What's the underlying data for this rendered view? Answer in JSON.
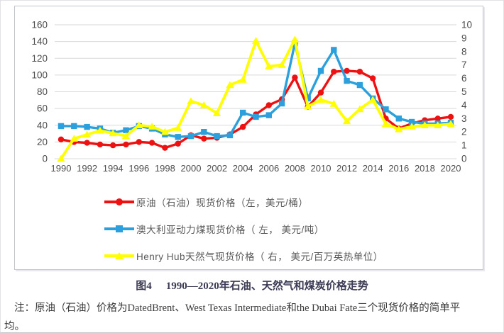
{
  "caption": {
    "label": "图4",
    "title": "1990—2020年石油、天然气和煤炭价格走势"
  },
  "note": {
    "line1": "注：原油（石油）价格为DatedBrent、West Texas Intermediate和the Dubai Fate三个现货价格的简单平",
    "line2": "均。"
  },
  "colors": {
    "caption_text": "#3c3b54",
    "grid": "#d9d9d9",
    "axis_text": "#4d4d4d",
    "oil": "#ee1111",
    "coal": "#2ba0dd",
    "gas": "#ffff00"
  },
  "chart_data": {
    "type": "line",
    "x": [
      1990,
      1991,
      1992,
      1993,
      1994,
      1995,
      1996,
      1997,
      1998,
      1999,
      2000,
      2001,
      2002,
      2003,
      2004,
      2005,
      2006,
      2007,
      2008,
      2009,
      2010,
      2011,
      2012,
      2013,
      2014,
      2015,
      2016,
      2017,
      2018,
      2019,
      2020
    ],
    "x_tick_labels": [
      "1990",
      "1992",
      "1994",
      "1996",
      "1998",
      "2000",
      "2002",
      "2004",
      "2006",
      "2008",
      "2010",
      "2012",
      "2014",
      "2016",
      "2018",
      "2020"
    ],
    "x_tick_step": 2,
    "left_axis": {
      "min": 0,
      "max": 160,
      "step": 20,
      "tick_labels": [
        "0",
        "20",
        "40",
        "60",
        "80",
        "100",
        "120",
        "140",
        "160"
      ]
    },
    "right_axis": {
      "min": 0,
      "max": 10,
      "step": 1,
      "tick_labels": [
        "0",
        "1",
        "2",
        "3",
        "4",
        "5",
        "6",
        "7",
        "8",
        "9",
        "10"
      ]
    },
    "grid": true,
    "legend_position": "bottom-left",
    "series": [
      {
        "name": "原油（石油）现货价格（左，美元/桶）",
        "axis": "left",
        "color": "#ee1111",
        "marker": "circle",
        "line_width": 3.4,
        "values": [
          23,
          20,
          19,
          17,
          16,
          17,
          20,
          19,
          13,
          18,
          28,
          24,
          25,
          29,
          38,
          53,
          64,
          71,
          97,
          62,
          79,
          104,
          105,
          104,
          96,
          48,
          36,
          42,
          46,
          48,
          50
        ]
      },
      {
        "name": "澳大利亚动力煤现货价格（ 左， 美元/吨）",
        "axis": "left",
        "color": "#2ba0dd",
        "marker": "square",
        "line_width": 3.4,
        "values": [
          39,
          39,
          38,
          36,
          31,
          34,
          39,
          36,
          29,
          26,
          27,
          32,
          27,
          28,
          55,
          50,
          52,
          66,
          138,
          72,
          105,
          130,
          93,
          88,
          72,
          59,
          48,
          44,
          42,
          42,
          43
        ]
      },
      {
        "name": "Henry Hub天然气现货价格（ 右， 美元/百万英热单位）",
        "axis": "right",
        "color": "#ffff00",
        "marker": "triangle",
        "line_width": 3.8,
        "values": [
          0,
          1.5,
          1.8,
          2.1,
          1.9,
          1.7,
          2.5,
          2.4,
          2.0,
          2.3,
          4.3,
          4.0,
          3.4,
          5.5,
          5.9,
          8.8,
          6.9,
          7.0,
          8.9,
          3.9,
          4.4,
          4.1,
          2.8,
          3.7,
          4.4,
          2.6,
          2.2,
          2.4,
          2.5,
          2.5,
          2.6
        ]
      }
    ]
  }
}
